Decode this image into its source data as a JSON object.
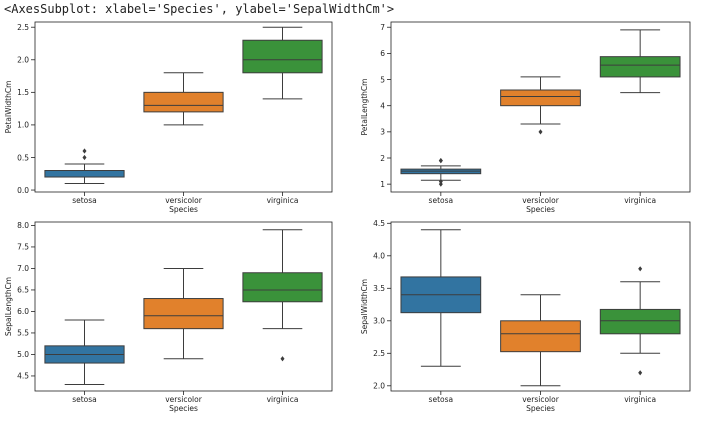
{
  "output_text": "<AxesSubplot: xlabel='Species', ylabel='SepalWidthCm'>",
  "colors": {
    "setosa": "#3274a1",
    "versicolor": "#e1812c",
    "virginica": "#3a923a"
  },
  "chart_data": [
    {
      "type": "box",
      "xlabel": "Species",
      "ylabel": "PetalWidthCm",
      "categories": [
        "setosa",
        "versicolor",
        "virginica"
      ],
      "ylim": [
        -0.03,
        2.58
      ],
      "yticks": [
        "0.0",
        "0.5",
        "1.0",
        "1.5",
        "2.0",
        "2.5"
      ],
      "boxes": [
        {
          "q1": 0.2,
          "median": 0.2,
          "q3": 0.3,
          "whislo": 0.1,
          "whishi": 0.4,
          "fliers": [
            0.5,
            0.6
          ]
        },
        {
          "q1": 1.2,
          "median": 1.3,
          "q3": 1.5,
          "whislo": 1.0,
          "whishi": 1.8,
          "fliers": []
        },
        {
          "q1": 1.8,
          "median": 2.0,
          "q3": 2.3,
          "whislo": 1.4,
          "whishi": 2.5,
          "fliers": []
        }
      ]
    },
    {
      "type": "box",
      "xlabel": "Species",
      "ylabel": "PetalLengthCm",
      "categories": [
        "setosa",
        "versicolor",
        "virginica"
      ],
      "ylim": [
        0.7,
        7.2
      ],
      "yticks": [
        "1",
        "2",
        "3",
        "4",
        "5",
        "6",
        "7"
      ],
      "boxes": [
        {
          "q1": 1.4,
          "median": 1.5,
          "q3": 1.575,
          "whislo": 1.15,
          "whishi": 1.7,
          "fliers": [
            1.9,
            1.9,
            1.0,
            1.1
          ]
        },
        {
          "q1": 4.0,
          "median": 4.35,
          "q3": 4.6,
          "whislo": 3.3,
          "whishi": 5.1,
          "fliers": [
            3.0
          ]
        },
        {
          "q1": 5.1,
          "median": 5.55,
          "q3": 5.875,
          "whislo": 4.5,
          "whishi": 6.9,
          "fliers": []
        }
      ]
    },
    {
      "type": "box",
      "xlabel": "Species",
      "ylabel": "SepalLengthCm",
      "categories": [
        "setosa",
        "versicolor",
        "virginica"
      ],
      "ylim": [
        4.15,
        8.08
      ],
      "yticks": [
        "4.5",
        "5.0",
        "5.5",
        "6.0",
        "6.5",
        "7.0",
        "7.5",
        "8.0"
      ],
      "boxes": [
        {
          "q1": 4.8,
          "median": 5.0,
          "q3": 5.2,
          "whislo": 4.3,
          "whishi": 5.8,
          "fliers": []
        },
        {
          "q1": 5.6,
          "median": 5.9,
          "q3": 6.3,
          "whislo": 4.9,
          "whishi": 7.0,
          "fliers": []
        },
        {
          "q1": 6.225,
          "median": 6.5,
          "q3": 6.9,
          "whislo": 5.6,
          "whishi": 7.9,
          "fliers": [
            4.9
          ]
        }
      ]
    },
    {
      "type": "box",
      "xlabel": "Species",
      "ylabel": "SepalWidthCm",
      "categories": [
        "setosa",
        "versicolor",
        "virginica"
      ],
      "ylim": [
        1.92,
        4.52
      ],
      "yticks": [
        "2.0",
        "2.5",
        "3.0",
        "3.5",
        "4.0",
        "4.5"
      ],
      "boxes": [
        {
          "q1": 3.125,
          "median": 3.4,
          "q3": 3.675,
          "whislo": 2.3,
          "whishi": 4.4,
          "fliers": []
        },
        {
          "q1": 2.525,
          "median": 2.8,
          "q3": 3.0,
          "whislo": 2.0,
          "whishi": 3.4,
          "fliers": []
        },
        {
          "q1": 2.8,
          "median": 3.0,
          "q3": 3.175,
          "whislo": 2.5,
          "whishi": 3.6,
          "fliers": [
            3.8,
            2.2
          ]
        }
      ]
    }
  ]
}
